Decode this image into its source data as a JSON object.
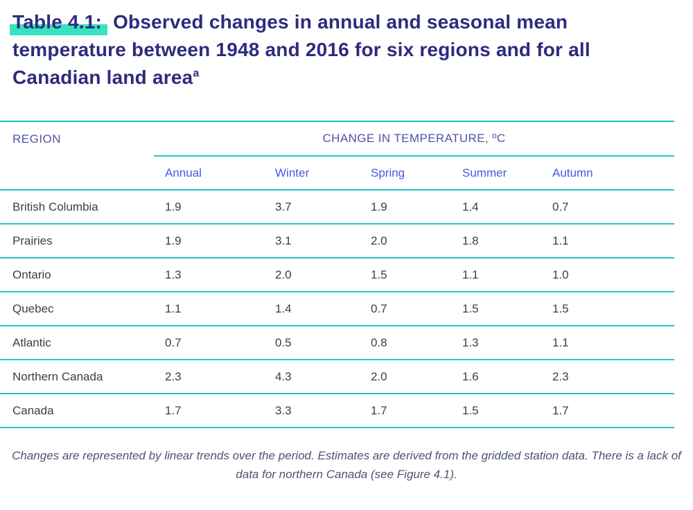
{
  "title": {
    "highlight": "Table 4.1:",
    "rest": " Observed changes in annual and seasonal mean temperature between 1948 and 2016 for six regions and for all Canadian land area",
    "superscript": "a"
  },
  "table": {
    "region_header": "REGION",
    "group_header": "CHANGE IN TEMPERATURE, ºC",
    "season_headers": [
      "Annual",
      "Winter",
      "Spring",
      "Summer",
      "Autumn"
    ],
    "rows": [
      {
        "region": "British Columbia",
        "values": [
          "1.9",
          "3.7",
          "1.9",
          "1.4",
          "0.7"
        ]
      },
      {
        "region": "Prairies",
        "values": [
          "1.9",
          "3.1",
          "2.0",
          "1.8",
          "1.1"
        ]
      },
      {
        "region": "Ontario",
        "values": [
          "1.3",
          "2.0",
          "1.5",
          "1.1",
          "1.0"
        ]
      },
      {
        "region": "Quebec",
        "values": [
          "1.1",
          "1.4",
          "0.7",
          "1.5",
          "1.5"
        ]
      },
      {
        "region": "Atlantic",
        "values": [
          "0.7",
          "0.5",
          "0.8",
          "1.3",
          "1.1"
        ]
      },
      {
        "region": "Northern Canada",
        "values": [
          "2.3",
          "4.3",
          "2.0",
          "1.6",
          "2.3"
        ]
      },
      {
        "region": "Canada",
        "values": [
          "1.7",
          "3.3",
          "1.7",
          "1.5",
          "1.7"
        ]
      }
    ]
  },
  "footnote": "Changes are represented by linear trends over the period. Estimates are derived from the gridded station data. There is a lack of data for northern Canada (see Figure 4.1).",
  "colors": {
    "title_navy": "#2d2b7f",
    "highlight_mint": "#39e2bf",
    "header_purple": "#5053a6",
    "season_blue": "#4656e4",
    "line_teal": "#1fc6ca",
    "body_gray": "#3e3e3e",
    "footnote_slate": "#4a5470"
  }
}
